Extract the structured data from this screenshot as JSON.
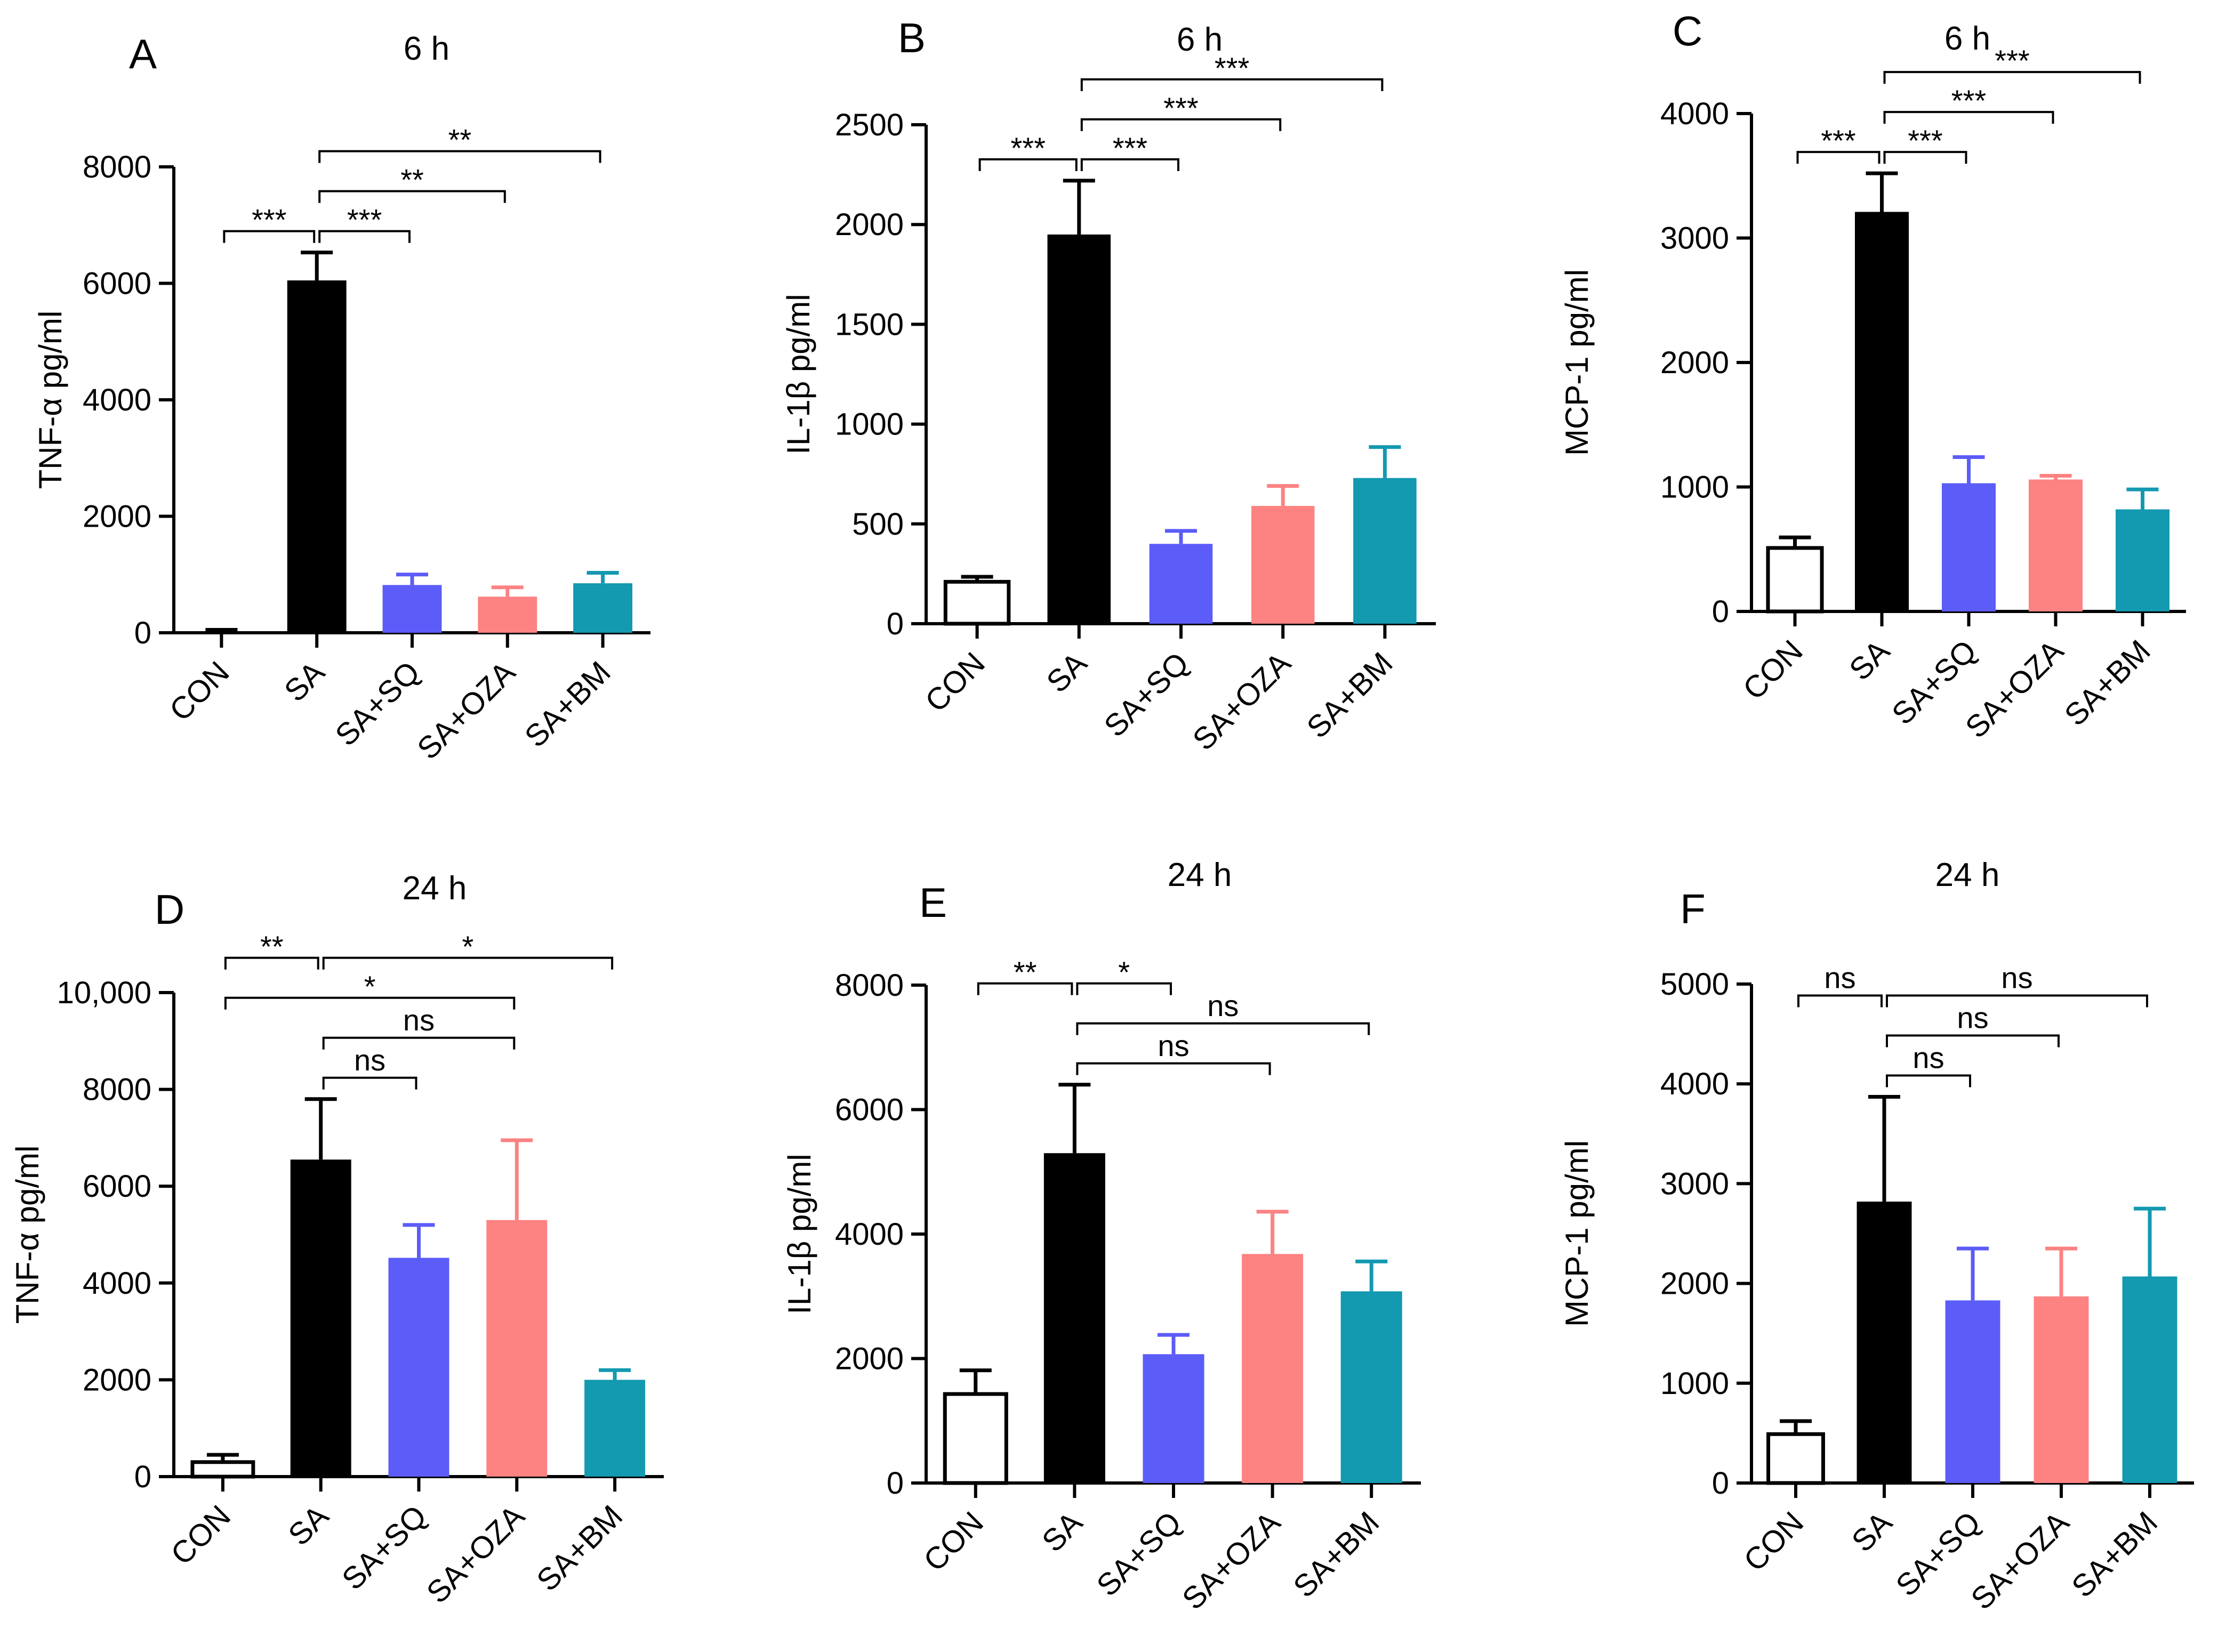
{
  "figure": {
    "categories": [
      "CON",
      "SA",
      "SA+SQ",
      "SA+OZA",
      "SA+BM"
    ],
    "colors": {
      "CON": "#ffffff",
      "SA": "#000000",
      "SA+SQ": "#5c5cf8",
      "SA+OZA": "#fd8282",
      "SA+BM": "#1399b0",
      "axis": "#000000"
    }
  },
  "chart_data": [
    {
      "type": "bar",
      "panel": "A",
      "title": "6 h",
      "ylabel": "TNF-α pg/ml",
      "xlabel": "",
      "categories": [
        "CON",
        "SA",
        "SA+SQ",
        "SA+OZA",
        "SA+BM"
      ],
      "values": [
        0,
        6050,
        820,
        620,
        850
      ],
      "errors": [
        50,
        480,
        180,
        160,
        180
      ],
      "ylim": [
        0,
        8000
      ],
      "yticks": [
        0,
        2000,
        4000,
        6000,
        8000
      ],
      "ytick_labels": [
        "0",
        "2000",
        "4000",
        "6000",
        "8000"
      ],
      "significance": [
        {
          "from": 0,
          "to": 1,
          "label": "***",
          "level": 1
        },
        {
          "from": 1,
          "to": 2,
          "label": "***",
          "level": 1
        },
        {
          "from": 1,
          "to": 3,
          "label": "**",
          "level": 2
        },
        {
          "from": 1,
          "to": 4,
          "label": "**",
          "level": 3
        }
      ]
    },
    {
      "type": "bar",
      "panel": "B",
      "title": "6 h",
      "ylabel": "IL-1β pg/ml",
      "xlabel": "",
      "categories": [
        "CON",
        "SA",
        "SA+SQ",
        "SA+OZA",
        "SA+BM"
      ],
      "values": [
        210,
        1950,
        400,
        590,
        730
      ],
      "errors": [
        25,
        270,
        65,
        100,
        155
      ],
      "ylim": [
        0,
        2500
      ],
      "yticks": [
        0,
        500,
        1000,
        1500,
        2000,
        2500
      ],
      "ytick_labels": [
        "0",
        "500",
        "1000",
        "1500",
        "2000",
        "2500"
      ],
      "significance": [
        {
          "from": 0,
          "to": 1,
          "label": "***",
          "level": 1
        },
        {
          "from": 1,
          "to": 2,
          "label": "***",
          "level": 1
        },
        {
          "from": 1,
          "to": 3,
          "label": "***",
          "level": 2
        },
        {
          "from": 1,
          "to": 4,
          "label": "***",
          "level": 3
        }
      ]
    },
    {
      "type": "bar",
      "panel": "C",
      "title": "6 h",
      "ylabel": "MCP-1 pg/ml",
      "xlabel": "",
      "categories": [
        "CON",
        "SA",
        "SA+SQ",
        "SA+OZA",
        "SA+BM"
      ],
      "values": [
        510,
        3210,
        1030,
        1060,
        820
      ],
      "errors": [
        85,
        310,
        210,
        30,
        160
      ],
      "ylim": [
        0,
        4000
      ],
      "yticks": [
        0,
        1000,
        2000,
        3000,
        4000
      ],
      "ytick_labels": [
        "0",
        "1000",
        "2000",
        "3000",
        "4000"
      ],
      "significance": [
        {
          "from": 0,
          "to": 1,
          "label": "***",
          "level": 1
        },
        {
          "from": 1,
          "to": 2,
          "label": "***",
          "level": 1
        },
        {
          "from": 1,
          "to": 3,
          "label": "***",
          "level": 2
        },
        {
          "from": 1,
          "to": 4,
          "label": "***",
          "level": 3
        }
      ]
    },
    {
      "type": "bar",
      "panel": "D",
      "title": "24 h",
      "ylabel": "TNF-α pg/ml",
      "xlabel": "",
      "categories": [
        "CON",
        "SA",
        "SA+SQ",
        "SA+OZA",
        "SA+BM"
      ],
      "values": [
        300,
        6550,
        4520,
        5300,
        2000
      ],
      "errors": [
        150,
        1250,
        680,
        1650,
        200
      ],
      "ylim": [
        0,
        10000
      ],
      "yticks": [
        0,
        2000,
        4000,
        6000,
        8000,
        10000
      ],
      "ytick_labels": [
        "0",
        "2000",
        "4000",
        "6000",
        "8000",
        "10,000"
      ],
      "significance": [
        {
          "from": 0,
          "to": 1,
          "label": "**",
          "level": 4
        },
        {
          "from": 1,
          "to": 4,
          "label": "*",
          "level": 4
        },
        {
          "from": 0,
          "to": 3,
          "label": "*",
          "level": 3
        },
        {
          "from": 1,
          "to": 3,
          "label": "ns",
          "level": 2
        },
        {
          "from": 1,
          "to": 2,
          "label": "ns",
          "level": 1
        }
      ]
    },
    {
      "type": "bar",
      "panel": "E",
      "title": "24 h",
      "ylabel": "IL-1β pg/ml",
      "xlabel": "",
      "categories": [
        "CON",
        "SA",
        "SA+SQ",
        "SA+OZA",
        "SA+BM"
      ],
      "values": [
        1430,
        5300,
        2070,
        3680,
        3080
      ],
      "errors": [
        380,
        1100,
        310,
        680,
        480
      ],
      "ylim": [
        0,
        8000
      ],
      "yticks": [
        0,
        2000,
        4000,
        6000,
        8000
      ],
      "ytick_labels": [
        "0",
        "2000",
        "4000",
        "6000",
        "8000"
      ],
      "significance": [
        {
          "from": 0,
          "to": 1,
          "label": "**",
          "level": 3
        },
        {
          "from": 1,
          "to": 2,
          "label": "*",
          "level": 3
        },
        {
          "from": 1,
          "to": 4,
          "label": "ns",
          "level": 2
        },
        {
          "from": 1,
          "to": 3,
          "label": "ns",
          "level": 1
        }
      ]
    },
    {
      "type": "bar",
      "panel": "F",
      "title": "24 h",
      "ylabel": "MCP-1 pg/ml",
      "xlabel": "",
      "categories": [
        "CON",
        "SA",
        "SA+SQ",
        "SA+OZA",
        "SA+BM"
      ],
      "values": [
        490,
        2820,
        1830,
        1870,
        2070
      ],
      "errors": [
        130,
        1050,
        520,
        480,
        680
      ],
      "ylim": [
        0,
        5000
      ],
      "yticks": [
        0,
        1000,
        2000,
        3000,
        4000,
        5000
      ],
      "ytick_labels": [
        "0",
        "1000",
        "2000",
        "3000",
        "4000",
        "5000"
      ],
      "significance": [
        {
          "from": 0,
          "to": 1,
          "label": "ns",
          "level": 3
        },
        {
          "from": 1,
          "to": 4,
          "label": "ns",
          "level": 3
        },
        {
          "from": 1,
          "to": 3,
          "label": "ns",
          "level": 2
        },
        {
          "from": 1,
          "to": 2,
          "label": "ns",
          "level": 1
        }
      ]
    }
  ]
}
